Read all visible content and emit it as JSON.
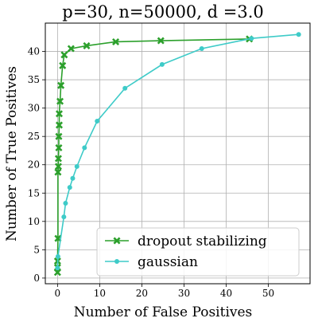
{
  "chart_data": {
    "type": "line",
    "title": "p=30, n=50000, d =3.0",
    "xlabel": "Number of False Positives",
    "ylabel": "Number of True Positives",
    "xlim": [
      -2.9,
      59.9
    ],
    "ylim": [
      -1.0,
      45.0
    ],
    "xticks": [
      0,
      10,
      20,
      30,
      40,
      50
    ],
    "yticks": [
      0,
      5,
      10,
      15,
      20,
      25,
      30,
      35,
      40
    ],
    "grid": true,
    "legend_position": "lower-right",
    "series": [
      {
        "name": "dropout stabilizing",
        "color": "#2ca02c",
        "marker": "x",
        "points": [
          [
            0.0,
            1.0
          ],
          [
            0.0,
            1.9
          ],
          [
            0.0,
            3.0
          ],
          [
            0.1,
            7.0
          ],
          [
            0.1,
            18.7
          ],
          [
            0.2,
            19.7
          ],
          [
            0.2,
            21.1
          ],
          [
            0.3,
            23.0
          ],
          [
            0.3,
            25.0
          ],
          [
            0.4,
            27.0
          ],
          [
            0.4,
            29.0
          ],
          [
            0.6,
            31.2
          ],
          [
            0.8,
            34.0
          ],
          [
            1.2,
            37.5
          ],
          [
            1.6,
            39.4
          ],
          [
            3.2,
            40.5
          ],
          [
            6.9,
            41.0
          ],
          [
            13.8,
            41.7
          ],
          [
            24.5,
            41.9
          ],
          [
            45.5,
            42.2
          ]
        ]
      },
      {
        "name": "gaussian",
        "color": "#3ecbc8",
        "marker": "o",
        "points": [
          [
            0.0,
            1.8
          ],
          [
            0.1,
            3.8
          ],
          [
            1.5,
            10.8
          ],
          [
            1.9,
            13.2
          ],
          [
            2.9,
            16.0
          ],
          [
            3.6,
            17.6
          ],
          [
            4.6,
            19.7
          ],
          [
            6.4,
            23.0
          ],
          [
            9.4,
            27.7
          ],
          [
            16.0,
            33.5
          ],
          [
            24.8,
            37.7
          ],
          [
            34.2,
            40.5
          ],
          [
            46.0,
            42.3
          ],
          [
            57.2,
            43.0
          ]
        ]
      }
    ]
  }
}
